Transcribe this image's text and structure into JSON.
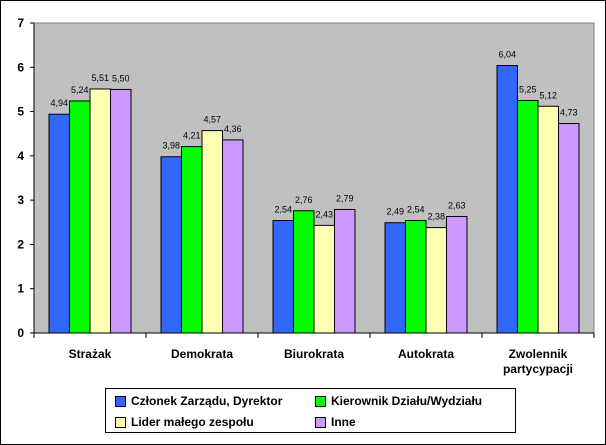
{
  "chart_data": {
    "type": "bar",
    "title": "",
    "xlabel": "",
    "ylabel": "",
    "ylim": [
      0,
      7
    ],
    "yticks": [
      "0",
      "1",
      "2",
      "3",
      "4",
      "5",
      "6",
      "7"
    ],
    "grid": false,
    "legend_position": "bottom",
    "background": "#c0c0c0",
    "categories": [
      [
        "Strażak"
      ],
      [
        "Demokrata"
      ],
      [
        "Biurokrata"
      ],
      [
        "Autokrata"
      ],
      [
        "Zwolennik",
        "partycypacji"
      ]
    ],
    "series": [
      {
        "name": "Członek Zarządu, Dyrektor",
        "color": "#3366ff",
        "values": [
          4.94,
          3.98,
          2.54,
          2.49,
          6.04
        ],
        "labels": [
          "4,94",
          "3,98",
          "2,54",
          "2,49",
          "6,04"
        ]
      },
      {
        "name": "Kierownik Działu/Wydziału",
        "color": "#00ff00",
        "values": [
          5.24,
          4.21,
          2.76,
          2.54,
          5.25
        ],
        "labels": [
          "5,24",
          "4,21",
          "2,76",
          "2,54",
          "5,25"
        ]
      },
      {
        "name": "Lider małego zespołu",
        "color": "#ffffb3",
        "values": [
          5.51,
          4.57,
          2.43,
          2.38,
          5.12
        ],
        "labels": [
          "5,51",
          "4,57",
          "2,43",
          "2,38",
          "5,12"
        ]
      },
      {
        "name": "Inne",
        "color": "#cc99ff",
        "values": [
          5.5,
          4.36,
          2.79,
          2.63,
          4.73
        ],
        "labels": [
          "5,50",
          "4,36",
          "2,79",
          "2,63",
          "4,73"
        ]
      }
    ]
  }
}
